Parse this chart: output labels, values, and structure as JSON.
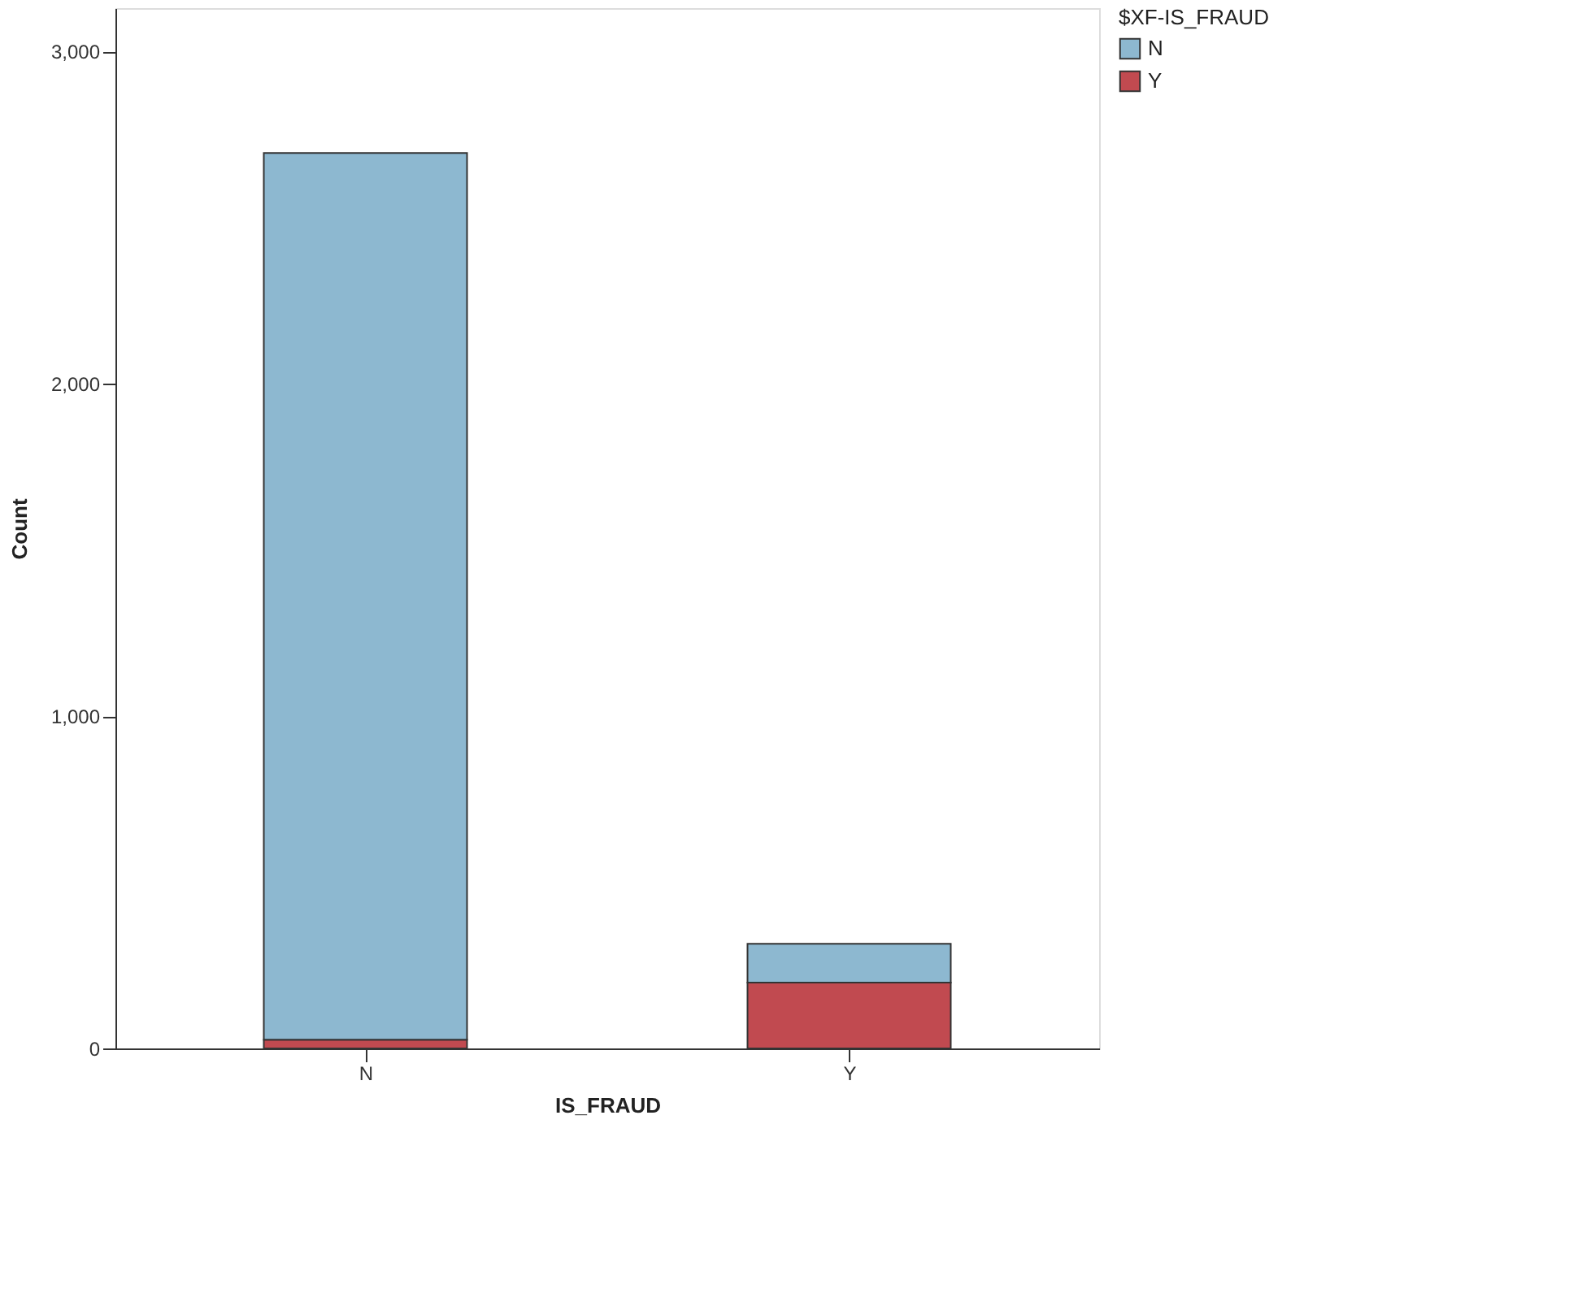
{
  "chart_data": {
    "type": "bar",
    "stacked": true,
    "xlabel": "IS_FRAUD",
    "ylabel": "Count",
    "legend_title": "$XF-IS_FRAUD",
    "categories": [
      "N",
      "Y"
    ],
    "series": [
      {
        "name": "Y",
        "color": "#c14a50",
        "values": [
          26,
          198
        ]
      },
      {
        "name": "N",
        "color": "#8db8d0",
        "values": [
          2668,
          117
        ]
      }
    ],
    "ylim": [
      0,
      3130
    ],
    "yticks": [
      {
        "value": 0,
        "label": "0"
      },
      {
        "value": 1000,
        "label": "1,000"
      },
      {
        "value": 2000,
        "label": "2,000"
      },
      {
        "value": 3000,
        "label": "3,000"
      }
    ],
    "grid": false,
    "legend": "top right"
  }
}
